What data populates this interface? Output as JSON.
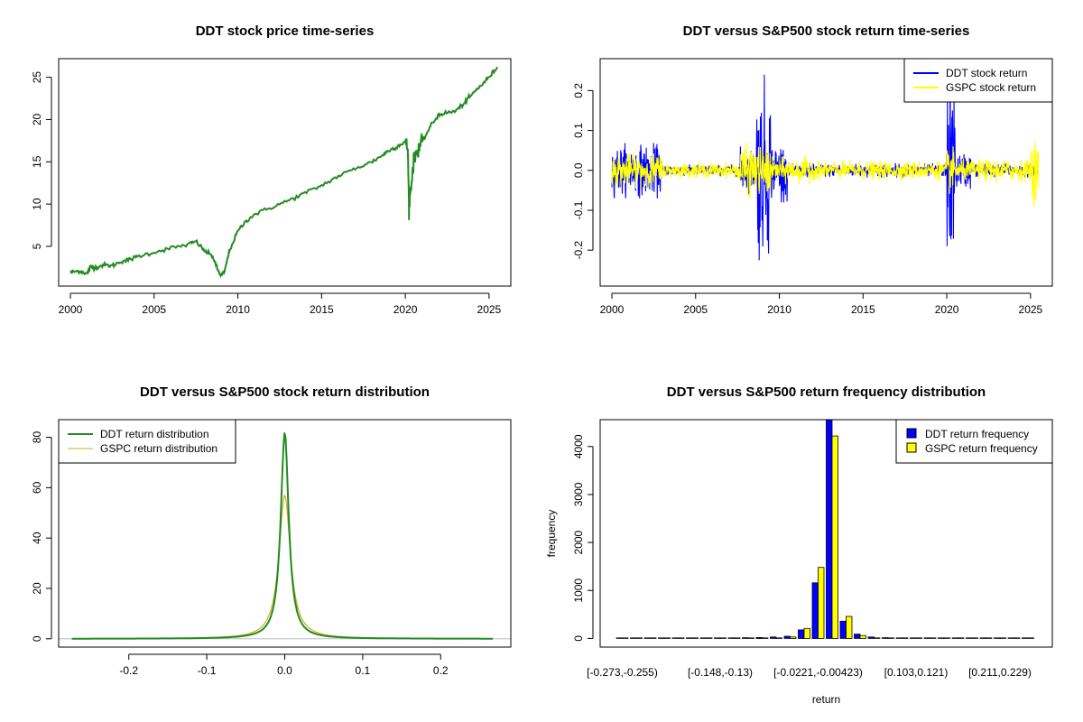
{
  "colors": {
    "green": "#228b22",
    "blue": "#0000ff",
    "yellow": "#ffff00",
    "orange": "#daa520",
    "grey": "#bebebe"
  },
  "chart_data": [
    {
      "id": "price",
      "type": "line",
      "title": "DDT stock price time-series",
      "xlabel": "",
      "ylabel": "",
      "xlim": [
        1999.3,
        2026.3
      ],
      "ylim": [
        0.3,
        27.2
      ],
      "xticks": [
        2000,
        2005,
        2010,
        2015,
        2020,
        2025
      ],
      "xtick_labels": [
        "2000",
        "2005",
        "2010",
        "2015",
        "2020",
        "2025"
      ],
      "yticks": [
        5,
        10,
        15,
        20,
        25
      ],
      "ytick_labels": [
        "5",
        "10",
        "15",
        "20",
        "25"
      ],
      "series": [
        {
          "name": "DDT stock price",
          "color": "#228b22",
          "x": [
            2000.0,
            2000.5,
            2001.0,
            2001.2,
            2001.5,
            2002.0,
            2002.5,
            2003.0,
            2003.5,
            2004.0,
            2005.0,
            2006.0,
            2007.0,
            2007.5,
            2008.0,
            2008.5,
            2008.8,
            2009.0,
            2009.2,
            2009.5,
            2010.0,
            2010.5,
            2011.0,
            2012.0,
            2013.0,
            2014.0,
            2015.0,
            2016.0,
            2017.0,
            2018.0,
            2018.5,
            2019.0,
            2019.5,
            2020.0,
            2020.15,
            2020.22,
            2020.3,
            2020.5,
            2020.8,
            2021.0,
            2021.5,
            2022.0,
            2022.5,
            2023.0,
            2023.5,
            2024.0,
            2024.5,
            2025.0,
            2025.5
          ],
          "y": [
            1.9,
            2.1,
            1.8,
            2.6,
            2.5,
            2.8,
            2.7,
            3.2,
            3.4,
            3.8,
            4.3,
            4.8,
            5.2,
            5.6,
            4.5,
            3.8,
            2.2,
            1.5,
            2.0,
            4.5,
            6.8,
            8.0,
            8.8,
            9.6,
            10.4,
            11.3,
            12.2,
            13.3,
            14.2,
            15.0,
            15.6,
            16.3,
            16.8,
            17.4,
            16.5,
            9.8,
            11.5,
            15.0,
            16.8,
            17.3,
            19.2,
            20.6,
            20.8,
            21.0,
            21.9,
            23.0,
            24.0,
            25.0,
            26.2
          ]
        }
      ]
    },
    {
      "id": "returns",
      "type": "line",
      "title": "DDT versus S&P500 stock return time-series",
      "xlabel": "",
      "ylabel": "",
      "xlim": [
        1999.3,
        2026.3
      ],
      "ylim": [
        -0.29,
        0.28
      ],
      "xticks": [
        2000,
        2005,
        2010,
        2015,
        2020,
        2025
      ],
      "xtick_labels": [
        "2000",
        "2005",
        "2010",
        "2015",
        "2020",
        "2025"
      ],
      "yticks": [
        -0.2,
        -0.1,
        0.0,
        0.1,
        0.2
      ],
      "ytick_labels": [
        "-0.2",
        "-0.1",
        "0.0",
        "0.1",
        "0.2"
      ],
      "legend_position": "top-right",
      "series": [
        {
          "name": "DDT stock return",
          "color": "#0000ff",
          "amplitude_periods": [
            [
              2000.0,
              2003.0,
              0.07
            ],
            [
              2003.0,
              2007.6,
              0.015
            ],
            [
              2007.6,
              2008.6,
              0.06
            ],
            [
              2008.6,
              2009.5,
              0.24
            ],
            [
              2009.5,
              2010.5,
              0.08
            ],
            [
              2010.5,
              2020.0,
              0.018
            ],
            [
              2020.0,
              2020.5,
              0.27
            ],
            [
              2020.5,
              2021.5,
              0.05
            ],
            [
              2021.5,
              2025.5,
              0.018
            ]
          ]
        },
        {
          "name": "GSPC stock return",
          "color": "#ffff00",
          "amplitude_periods": [
            [
              2000.0,
              2003.0,
              0.045
            ],
            [
              2003.0,
              2007.6,
              0.02
            ],
            [
              2007.6,
              2009.5,
              0.07
            ],
            [
              2009.5,
              2012.0,
              0.035
            ],
            [
              2012.0,
              2020.0,
              0.025
            ],
            [
              2020.0,
              2020.5,
              0.06
            ],
            [
              2020.5,
              2025.0,
              0.03
            ],
            [
              2025.0,
              2025.5,
              0.09
            ]
          ]
        }
      ]
    },
    {
      "id": "density",
      "type": "line",
      "title": "DDT versus S&P500 stock return distribution",
      "xlabel": "",
      "ylabel": "",
      "xlim": [
        -0.29,
        0.29
      ],
      "ylim": [
        -3.3,
        87.0
      ],
      "xticks": [
        -0.2,
        -0.1,
        0.0,
        0.1,
        0.2
      ],
      "xtick_labels": [
        "-0.2",
        "-0.1",
        "0.0",
        "0.1",
        "0.2"
      ],
      "yticks": [
        0,
        20,
        40,
        60,
        80
      ],
      "ytick_labels": [
        "0",
        "20",
        "40",
        "60",
        "80"
      ],
      "legend_position": "top-left",
      "x_range": [
        -0.273,
        0.267
      ],
      "series": [
        {
          "name": "DDT return distribution",
          "color": "#228b22",
          "peak": 82,
          "scale": 0.0062
        },
        {
          "name": "GSPC return distribution",
          "color": "#daa520",
          "peak": 57,
          "scale": 0.0089
        }
      ]
    },
    {
      "id": "histogram",
      "type": "bar",
      "title": "DDT versus S&P500 return frequency distribution",
      "xlabel": "return",
      "ylabel": "frequency",
      "ylim": [
        -180,
        4560
      ],
      "yticks": [
        0,
        1000,
        2000,
        3000,
        4000
      ],
      "ytick_labels": [
        "0",
        "1000",
        "2000",
        "3000",
        "4000"
      ],
      "xtick_labels": [
        "[-0.273,-0.255)",
        "[-0.148,-0.13)",
        "[-0.0221,-0.00423)",
        "[0.103,0.121)",
        "[0.211,0.229)"
      ],
      "xtick_label_bins": [
        0,
        7,
        14,
        21,
        27
      ],
      "legend_position": "top-right",
      "series": [
        {
          "name": "DDT return frequency",
          "color": "#0000ff",
          "values": [
            2,
            1,
            2,
            3,
            2,
            4,
            6,
            8,
            10,
            15,
            20,
            30,
            45,
            180,
            1160,
            4560,
            360,
            90,
            30,
            15,
            8,
            5,
            4,
            3,
            2,
            1,
            2,
            1,
            1,
            1
          ]
        },
        {
          "name": "GSPC return frequency",
          "color": "#ffff00",
          "values": [
            0,
            0,
            0,
            0,
            0,
            0,
            0,
            0,
            0,
            2,
            5,
            10,
            30,
            210,
            1480,
            4220,
            460,
            60,
            10,
            3,
            1,
            0,
            0,
            0,
            0,
            0,
            0,
            0,
            0,
            0
          ]
        }
      ]
    }
  ]
}
